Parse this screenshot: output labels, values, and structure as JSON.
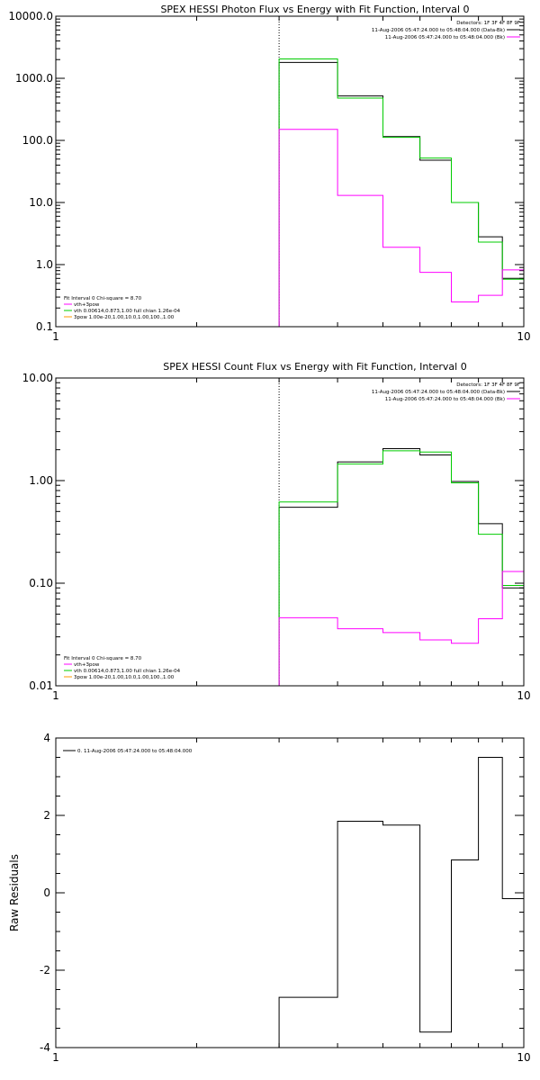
{
  "chart_data": [
    {
      "type": "line",
      "step": true,
      "title": "SPEX HESSI Photon Flux vs Energy with Fit Function, Interval 0",
      "xscale": "log",
      "yscale": "log",
      "xlim": [
        1,
        10
      ],
      "ylim": [
        0.1,
        10000
      ],
      "xtick_labels": [
        "1",
        "10"
      ],
      "ytick_labels": [
        "0.1",
        "1.0",
        "10.0",
        "100.0",
        "1000.0",
        "10000.0"
      ],
      "vline_x": 3,
      "info_lines": [
        "Detectors: 1F 3F 4F 8F 9F",
        "11-Aug-2006 05:47:24.000 to 05:48:04.000 (Data-Bk)",
        "11-Aug-2006 05:47:24.000 to 05:48:04.000 (Bk)"
      ],
      "fit_info": [
        "Fit Interval  0   Chi-square = 8.70",
        "vth+3pow",
        "vth 0.00614,0.873,1.00  full chian 1.26e-04",
        "3pow 1.00e-20,1.00,10.0,1.00,100.,1.00"
      ],
      "edges": [
        3,
        4,
        5,
        6,
        7,
        8,
        9,
        10
      ],
      "series": [
        {
          "name": "Data-Bk",
          "color": "#000000",
          "values": [
            1800,
            520,
            115,
            48,
            10,
            2.8,
            0.6
          ]
        },
        {
          "name": "fit",
          "color": "#00cc00",
          "values": [
            2050,
            480,
            112,
            52,
            10,
            2.3,
            0.58
          ]
        },
        {
          "name": "Bk",
          "color": "#ff00ff",
          "values": [
            150,
            13,
            1.9,
            0.75,
            0.25,
            0.32,
            0.82
          ]
        }
      ]
    },
    {
      "type": "line",
      "step": true,
      "title": "SPEX HESSI Count Flux vs Energy with Fit Function, Interval 0",
      "xscale": "log",
      "yscale": "log",
      "xlim": [
        1,
        10
      ],
      "ylim": [
        0.01,
        10
      ],
      "xtick_labels": [
        "1",
        "10"
      ],
      "ytick_labels": [
        "0.01",
        "0.10",
        "1.00",
        "10.00"
      ],
      "vline_x": 3,
      "info_lines": [
        "Detectors: 1F 3F 4F 8F 9F",
        "11-Aug-2006 05:47:24.000 to 05:48:04.000 (Data-Bk)",
        "11-Aug-2006 05:47:24.000 to 05:48:04.000 (Bk)"
      ],
      "fit_info": [
        "Fit Interval  0   Chi-square = 8.70",
        "vth+3pow",
        "vth 0.00614,0.873,1.00  full chian 1.26e-04",
        "3pow 1.00e-20,1.00,10.0,1.00,100.,1.00"
      ],
      "edges": [
        3,
        4,
        5,
        6,
        7,
        8,
        9,
        10
      ],
      "series": [
        {
          "name": "Data-Bk",
          "color": "#000000",
          "values": [
            0.55,
            1.52,
            2.05,
            1.78,
            0.98,
            0.38,
            0.09
          ]
        },
        {
          "name": "fit",
          "color": "#00cc00",
          "values": [
            0.62,
            1.45,
            1.95,
            1.9,
            0.95,
            0.3,
            0.095
          ]
        },
        {
          "name": "Bk",
          "color": "#ff00ff",
          "values": [
            0.046,
            0.036,
            0.033,
            0.028,
            0.026,
            0.045,
            0.13
          ]
        }
      ]
    },
    {
      "type": "line",
      "step": true,
      "title": "",
      "xscale": "log",
      "yscale": "linear",
      "xlim": [
        1,
        10
      ],
      "ylim": [
        -4,
        4
      ],
      "xtick_labels": [
        "1",
        "10"
      ],
      "ytick_labels": [
        "-4",
        "-2",
        "0",
        "2",
        "4"
      ],
      "ylabel": "Raw Residuals",
      "legend": "0. 11-Aug-2006 05:47:24.000 to 05:48:04.000",
      "edges": [
        3,
        4,
        5,
        6,
        7,
        8,
        9,
        10
      ],
      "series": [
        {
          "name": "residuals",
          "color": "#000000",
          "values": [
            -2.7,
            1.85,
            1.75,
            -3.6,
            0.85,
            3.5,
            -0.15
          ]
        }
      ]
    }
  ]
}
